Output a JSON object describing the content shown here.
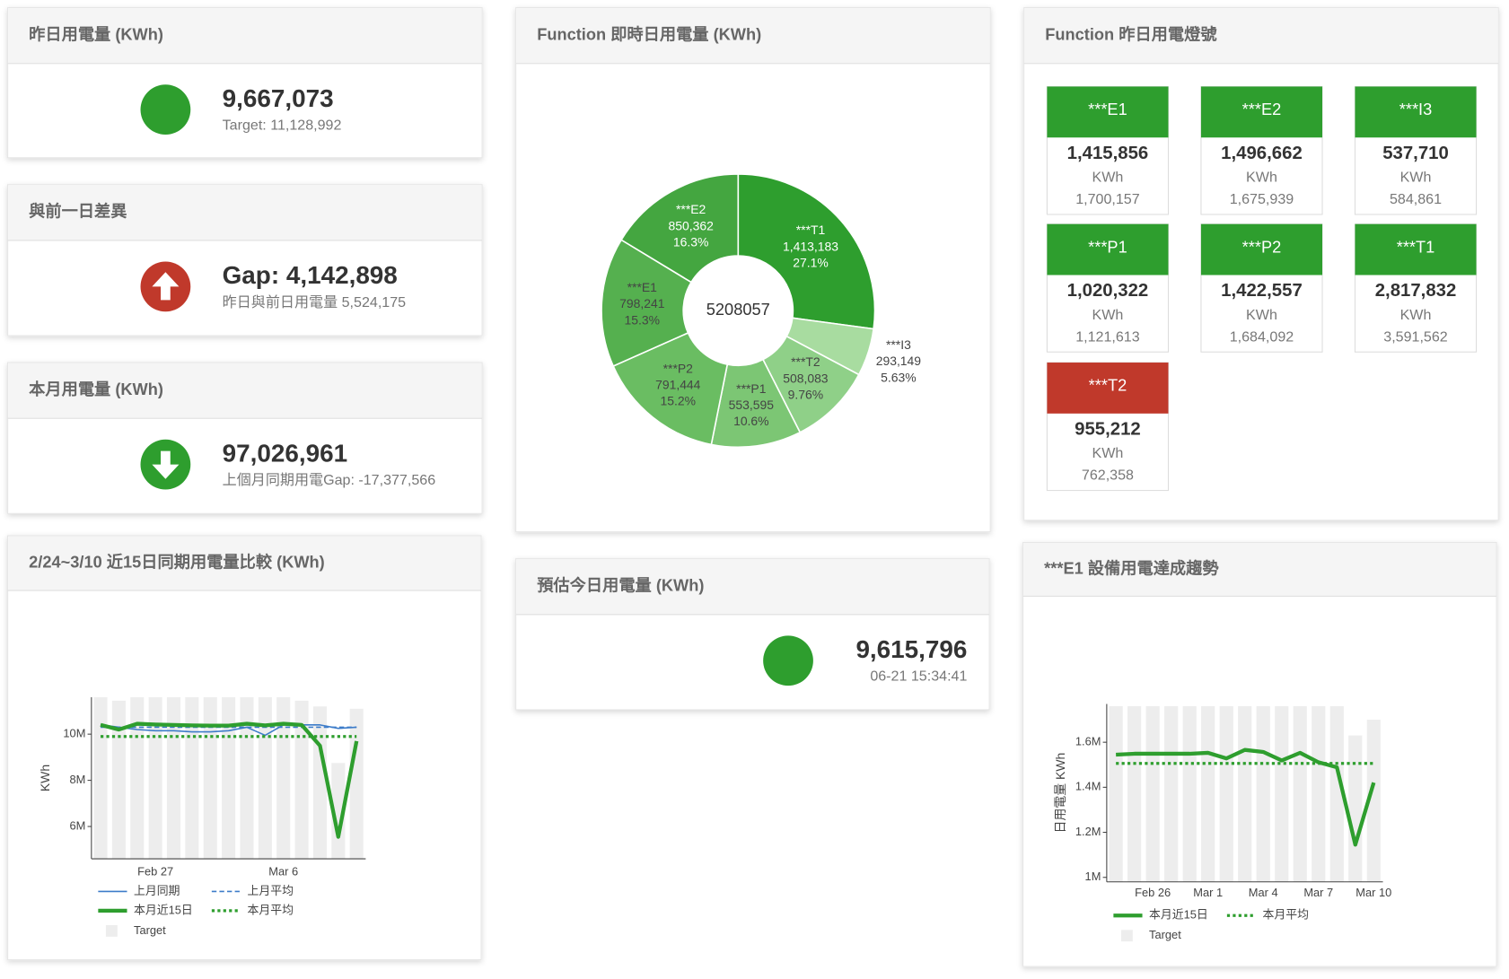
{
  "kpi": [
    {
      "title": "昨日用電量 (KWh)",
      "value": "9,667,073",
      "sub": "Target: 11,128,992",
      "icon": "circle",
      "color": "#2e9e2e"
    },
    {
      "title": "與前一日差異",
      "value": "Gap: 4,142,898",
      "sub": "昨日與前日用電量 5,524,175",
      "icon": "up",
      "color": "#c0392b"
    },
    {
      "title": "本月用電量 (KWh)",
      "value": "97,026,961",
      "sub": "上個月同期用電Gap: -17,377,566",
      "icon": "down",
      "color": "#2e9e2e"
    },
    {
      "title": "預估今日用電量 (KWh)",
      "value": "9,615,796",
      "sub": "06-21 15:34:41",
      "icon": "circle",
      "color": "#2e9e2e"
    }
  ],
  "lights": {
    "title": "Function 昨日用電燈號",
    "unit": "KWh",
    "items": [
      {
        "name": "***E1",
        "value": "1,415,856",
        "target": "1,700,157",
        "color": "#2e9e2e"
      },
      {
        "name": "***E2",
        "value": "1,496,662",
        "target": "1,675,939",
        "color": "#2e9e2e"
      },
      {
        "name": "***I3",
        "value": "537,710",
        "target": "584,861",
        "color": "#2e9e2e"
      },
      {
        "name": "***P1",
        "value": "1,020,322",
        "target": "1,121,613",
        "color": "#2e9e2e"
      },
      {
        "name": "***P2",
        "value": "1,422,557",
        "target": "1,684,092",
        "color": "#2e9e2e"
      },
      {
        "name": "***T1",
        "value": "2,817,832",
        "target": "3,591,562",
        "color": "#2e9e2e"
      },
      {
        "name": "***T2",
        "value": "955,212",
        "target": "762,358",
        "color": "#c0392b"
      }
    ]
  },
  "chart_data": [
    {
      "type": "pie",
      "title": "Function 即時日用電量 (KWh)",
      "total": 5208057,
      "hole": true,
      "categories": [
        "***T1",
        "***I3",
        "***T2",
        "***P1",
        "***P2",
        "***E1",
        "***E2"
      ],
      "values": [
        1413183,
        293149,
        508083,
        553595,
        791444,
        798241,
        850362
      ],
      "value_labels": [
        "1,413,183",
        "293,149",
        "508,083",
        "553,595",
        "791,444",
        "798,241",
        "850,362"
      ],
      "percent_labels": [
        "27.1%",
        "5.63%",
        "9.76%",
        "10.6%",
        "15.2%",
        "15.3%",
        "16.3%"
      ],
      "colors": [
        "#2e9e2e",
        "#a8dca0",
        "#8fd088",
        "#7cc674",
        "#6abd62",
        "#55b04f",
        "#44a640"
      ]
    },
    {
      "type": "line",
      "title": "2/24~3/10 近15日同期用電量比較 (KWh)",
      "ylabel": "KWh",
      "categories": [
        null,
        null,
        null,
        "Feb 27",
        null,
        null,
        null,
        null,
        null,
        null,
        "Mar 6",
        null,
        null,
        null,
        null
      ],
      "ylim": [
        4600000,
        11600000
      ],
      "yticks": [
        {
          "value": 6000000,
          "label": "6M"
        },
        {
          "value": 8000000,
          "label": "8M"
        },
        {
          "value": 10000000,
          "label": "10M"
        }
      ],
      "series": [
        {
          "name": "上月同期",
          "color": "#3d7cc9",
          "width": 1.5,
          "values": [
            10400000,
            10300000,
            10200000,
            10150000,
            10150000,
            10100000,
            10100000,
            10150000,
            10300000,
            9950000,
            10400000,
            10400000,
            10400000,
            10250000,
            10300000
          ]
        },
        {
          "name": "上月平均",
          "color": "#3d7cc9",
          "width": 1.5,
          "dash": "dashed",
          "value": 10300000
        },
        {
          "name": "本月近15日",
          "color": "#2e9e2e",
          "width": 4,
          "values": [
            10400000,
            10200000,
            10450000,
            10420000,
            10400000,
            10380000,
            10370000,
            10370000,
            10450000,
            10380000,
            10450000,
            10400000,
            9500000,
            5550000,
            9700000
          ]
        },
        {
          "name": "本月平均",
          "color": "#2e9e2e",
          "width": 3,
          "dash": "dotted",
          "value": 9900000
        },
        {
          "name": "Target",
          "color": "#ededed",
          "kind": "bar",
          "values": [
            11600000,
            11450000,
            11600000,
            11600000,
            11600000,
            11600000,
            11600000,
            11600000,
            11600000,
            11600000,
            11600000,
            11450000,
            11200000,
            8750000,
            11100000
          ]
        }
      ]
    },
    {
      "type": "line",
      "title": "***E1 設備用電達成趨勢",
      "ylabel": "日用電量 KWh",
      "categories": [
        null,
        null,
        "Feb 26",
        null,
        null,
        "Mar 1",
        null,
        null,
        "Mar 4",
        null,
        null,
        "Mar 7",
        null,
        null,
        "Mar 10"
      ],
      "ylim": [
        980000,
        1770000
      ],
      "yticks": [
        {
          "value": 1000000,
          "label": "1M"
        },
        {
          "value": 1200000,
          "label": "1.2M"
        },
        {
          "value": 1400000,
          "label": "1.4M"
        },
        {
          "value": 1600000,
          "label": "1.6M"
        }
      ],
      "series": [
        {
          "name": "本月近15日",
          "color": "#2e9e2e",
          "width": 4,
          "values": [
            1545000,
            1549000,
            1549000,
            1549000,
            1549000,
            1553000,
            1528000,
            1566000,
            1557000,
            1519000,
            1553000,
            1511000,
            1489000,
            1145000,
            1421000
          ]
        },
        {
          "name": "本月平均",
          "color": "#2e9e2e",
          "width": 3,
          "dash": "dotted",
          "value": 1506000
        },
        {
          "name": "Target",
          "color": "#ededed",
          "kind": "bar",
          "values": [
            1760000,
            1760000,
            1760000,
            1760000,
            1760000,
            1760000,
            1760000,
            1760000,
            1760000,
            1760000,
            1760000,
            1760000,
            1760000,
            1630000,
            1700000
          ]
        }
      ]
    }
  ]
}
